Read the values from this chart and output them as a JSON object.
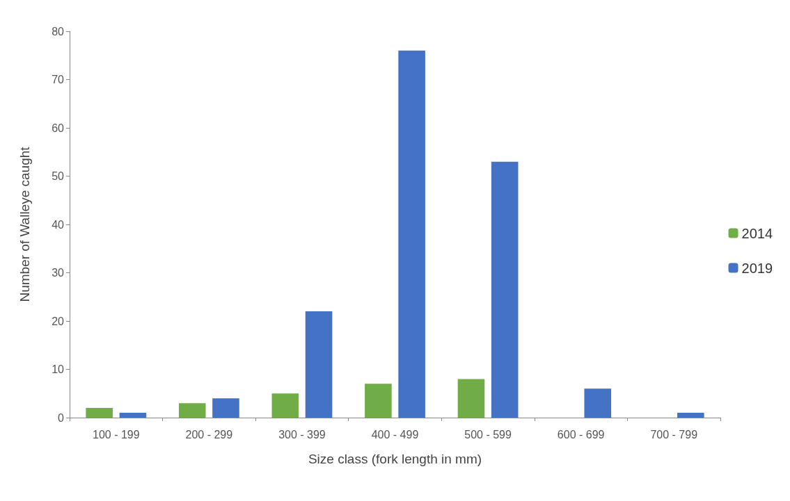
{
  "chart_data": {
    "type": "bar",
    "xlabel": "Size class (fork length in mm)",
    "ylabel": "Number of Walleye caught",
    "categories": [
      "100 - 199",
      "200 - 299",
      "300 - 399",
      "400 - 499",
      "500 - 599",
      "600 - 699",
      "700 - 799"
    ],
    "series": [
      {
        "name": "2014",
        "color": "#70ad47",
        "values": [
          2,
          3,
          5,
          7,
          8,
          0,
          0
        ]
      },
      {
        "name": "2019",
        "color": "#4472c4",
        "values": [
          1,
          4,
          22,
          76,
          53,
          6,
          1
        ]
      }
    ],
    "ylim": [
      0,
      80
    ],
    "yticks": [
      0,
      10,
      20,
      30,
      40,
      50,
      60,
      70,
      80
    ],
    "grid": false,
    "legend": "right"
  }
}
